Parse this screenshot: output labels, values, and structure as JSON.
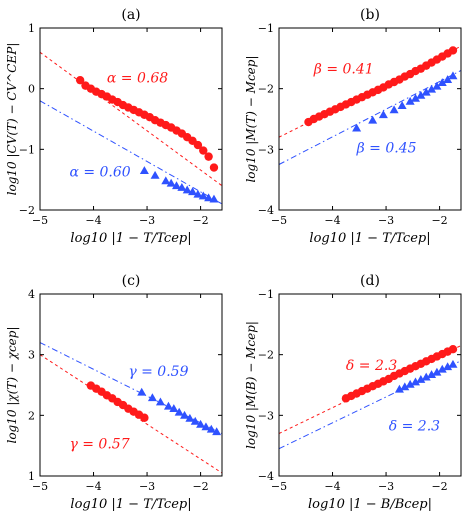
{
  "colors": {
    "red": "#ff1a1a",
    "blue": "#2f52ff",
    "axis": "#000000"
  },
  "chart_data": [
    {
      "type": "scatter",
      "panel_label": "(a)",
      "xlabel": "log10 |1 − T/Tcep|",
      "ylabel": "log10 |CV(T) − CV^CEP|",
      "xlim": [
        -5,
        -1.6
      ],
      "ylim": [
        -2,
        1
      ],
      "xticks": [
        -5,
        -4,
        -3,
        -2
      ],
      "yticks": [
        -2,
        -1,
        0,
        1
      ],
      "xtick_labels": [
        "−5",
        "−4",
        "−3",
        "−2"
      ],
      "ytick_labels": [
        "−2",
        "−1",
        "0",
        "1"
      ],
      "series": [
        {
          "color": "red",
          "marker": "circle",
          "x": [
            -4.25,
            -4.15,
            -4.05,
            -3.95,
            -3.85,
            -3.75,
            -3.65,
            -3.55,
            -3.45,
            -3.35,
            -3.25,
            -3.15,
            -3.05,
            -2.95,
            -2.85,
            -2.75,
            -2.65,
            -2.55,
            -2.45,
            -2.35,
            -2.25,
            -2.15,
            -2.05,
            -1.95,
            -1.85,
            -1.75
          ],
          "y": [
            0.14,
            0.05,
            0.0,
            -0.05,
            -0.09,
            -0.13,
            -0.18,
            -0.22,
            -0.27,
            -0.31,
            -0.35,
            -0.39,
            -0.43,
            -0.47,
            -0.52,
            -0.56,
            -0.6,
            -0.64,
            -0.69,
            -0.74,
            -0.8,
            -0.86,
            -0.93,
            -1.02,
            -1.12,
            -1.3
          ]
        },
        {
          "color": "blue",
          "marker": "triangle",
          "x": [
            -3.05,
            -2.85,
            -2.65,
            -2.55,
            -2.45,
            -2.35,
            -2.25,
            -2.15,
            -2.05,
            -1.95,
            -1.85,
            -1.75
          ],
          "y": [
            -1.35,
            -1.43,
            -1.52,
            -1.56,
            -1.6,
            -1.63,
            -1.67,
            -1.7,
            -1.74,
            -1.77,
            -1.8,
            -1.82
          ]
        }
      ],
      "fit_lines": [
        {
          "color": "red",
          "style": "dashed",
          "x": [
            -5,
            -1.6
          ],
          "y": [
            0.6,
            -1.6
          ]
        },
        {
          "color": "blue",
          "style": "dashdot",
          "x": [
            -5,
            -1.6
          ],
          "y": [
            -0.2,
            -1.9
          ]
        }
      ],
      "annotations": [
        {
          "text": "α = 0.68",
          "color": "red",
          "x": -3.75,
          "y": 0.1
        },
        {
          "text": "α = 0.60",
          "color": "blue",
          "x": -4.45,
          "y": -1.45
        }
      ]
    },
    {
      "type": "scatter",
      "panel_label": "(b)",
      "xlabel": "log10 |1 − T/Tcep|",
      "ylabel": "log10 |M(T) − Mcep|",
      "xlim": [
        -5,
        -1.6
      ],
      "ylim": [
        -4,
        -1
      ],
      "xticks": [
        -5,
        -4,
        -3,
        -2
      ],
      "yticks": [
        -4,
        -3,
        -2,
        -1
      ],
      "xtick_labels": [
        "−5",
        "−4",
        "−3",
        "−2"
      ],
      "ytick_labels": [
        "−4",
        "−3",
        "−2",
        "−1"
      ],
      "series": [
        {
          "color": "red",
          "marker": "circle",
          "x": [
            -4.45,
            -4.35,
            -4.25,
            -4.15,
            -4.05,
            -3.95,
            -3.85,
            -3.75,
            -3.65,
            -3.55,
            -3.45,
            -3.35,
            -3.25,
            -3.15,
            -3.05,
            -2.95,
            -2.85,
            -2.75,
            -2.65,
            -2.55,
            -2.45,
            -2.35,
            -2.25,
            -2.15,
            -2.05,
            -1.95,
            -1.85,
            -1.75
          ],
          "y": [
            -2.55,
            -2.5,
            -2.46,
            -2.42,
            -2.38,
            -2.34,
            -2.3,
            -2.26,
            -2.22,
            -2.18,
            -2.14,
            -2.1,
            -2.06,
            -2.02,
            -1.98,
            -1.93,
            -1.89,
            -1.85,
            -1.8,
            -1.76,
            -1.71,
            -1.67,
            -1.62,
            -1.57,
            -1.52,
            -1.47,
            -1.42,
            -1.37
          ]
        },
        {
          "color": "blue",
          "marker": "triangle",
          "x": [
            -3.55,
            -3.25,
            -3.05,
            -2.85,
            -2.7,
            -2.55,
            -2.45,
            -2.35,
            -2.25,
            -2.15,
            -2.05,
            -1.95,
            -1.85,
            -1.75
          ],
          "y": [
            -2.65,
            -2.52,
            -2.43,
            -2.35,
            -2.28,
            -2.21,
            -2.16,
            -2.11,
            -2.06,
            -2.01,
            -1.96,
            -1.9,
            -1.85,
            -1.79
          ]
        }
      ],
      "fit_lines": [
        {
          "color": "red",
          "style": "dashed",
          "x": [
            -5,
            -1.6
          ],
          "y": [
            -2.8,
            -1.3
          ]
        },
        {
          "color": "blue",
          "style": "dashdot",
          "x": [
            -5,
            -1.6
          ],
          "y": [
            -3.25,
            -1.7
          ]
        }
      ],
      "annotations": [
        {
          "text": "β = 0.41",
          "color": "red",
          "x": -4.35,
          "y": -1.75
        },
        {
          "text": "β = 0.45",
          "color": "blue",
          "x": -3.55,
          "y": -3.05
        }
      ]
    },
    {
      "type": "scatter",
      "panel_label": "(c)",
      "xlabel": "log10 |1 − T/Tcep|",
      "ylabel": "log10 |χ(T) − χcep|",
      "xlim": [
        -5,
        -1.6
      ],
      "ylim": [
        1,
        4
      ],
      "xticks": [
        -5,
        -4,
        -3,
        -2
      ],
      "yticks": [
        1,
        2,
        3,
        4
      ],
      "xtick_labels": [
        "−5",
        "−4",
        "−3",
        "−2"
      ],
      "ytick_labels": [
        "1",
        "2",
        "3",
        "4"
      ],
      "series": [
        {
          "color": "red",
          "marker": "circle",
          "x": [
            -4.05,
            -3.95,
            -3.85,
            -3.75,
            -3.65,
            -3.55,
            -3.45,
            -3.35,
            -3.25,
            -3.15,
            -3.05
          ],
          "y": [
            2.49,
            2.44,
            2.39,
            2.33,
            2.28,
            2.22,
            2.17,
            2.11,
            2.06,
            2.01,
            1.96
          ]
        },
        {
          "color": "blue",
          "marker": "triangle",
          "x": [
            -3.1,
            -2.9,
            -2.75,
            -2.6,
            -2.5,
            -2.4,
            -2.3,
            -2.2,
            -2.1,
            -2.0,
            -1.9,
            -1.8,
            -1.7
          ],
          "y": [
            2.38,
            2.29,
            2.22,
            2.15,
            2.11,
            2.05,
            2.0,
            1.95,
            1.9,
            1.85,
            1.81,
            1.77,
            1.73
          ]
        }
      ],
      "fit_lines": [
        {
          "color": "red",
          "style": "dashed",
          "x": [
            -5,
            -1.6
          ],
          "y": [
            3.0,
            1.05
          ]
        },
        {
          "color": "blue",
          "style": "dashdot",
          "x": [
            -5,
            -1.6
          ],
          "y": [
            3.2,
            1.7
          ]
        }
      ],
      "annotations": [
        {
          "text": "γ = 0.59",
          "color": "blue",
          "x": -3.35,
          "y": 2.65
        },
        {
          "text": "γ = 0.57",
          "color": "red",
          "x": -4.45,
          "y": 1.45
        }
      ]
    },
    {
      "type": "scatter",
      "panel_label": "(d)",
      "xlabel": "log10 |1 − B/Bcep|",
      "ylabel": "log10 |M(B) − Mcep|",
      "xlim": [
        -5,
        -1.6
      ],
      "ylim": [
        -4,
        -1
      ],
      "xticks": [
        -5,
        -4,
        -3,
        -2
      ],
      "yticks": [
        -4,
        -3,
        -2,
        -1
      ],
      "xtick_labels": [
        "−5",
        "−4",
        "−3",
        "−2"
      ],
      "ytick_labels": [
        "−4",
        "−3",
        "−2",
        "−1"
      ],
      "series": [
        {
          "color": "red",
          "marker": "circle",
          "x": [
            -3.75,
            -3.65,
            -3.55,
            -3.45,
            -3.35,
            -3.25,
            -3.15,
            -3.05,
            -2.95,
            -2.85,
            -2.75,
            -2.65,
            -2.55,
            -2.45,
            -2.35,
            -2.25,
            -2.15,
            -2.05,
            -1.95,
            -1.85,
            -1.75
          ],
          "y": [
            -2.72,
            -2.68,
            -2.64,
            -2.6,
            -2.56,
            -2.52,
            -2.48,
            -2.44,
            -2.4,
            -2.35,
            -2.31,
            -2.27,
            -2.23,
            -2.19,
            -2.15,
            -2.11,
            -2.07,
            -2.03,
            -1.99,
            -1.95,
            -1.91
          ]
        },
        {
          "color": "blue",
          "marker": "triangle",
          "x": [
            -2.75,
            -2.65,
            -2.55,
            -2.45,
            -2.35,
            -2.25,
            -2.15,
            -2.05,
            -1.95,
            -1.85,
            -1.75
          ],
          "y": [
            -2.57,
            -2.53,
            -2.49,
            -2.45,
            -2.41,
            -2.37,
            -2.33,
            -2.29,
            -2.24,
            -2.2,
            -2.16
          ]
        }
      ],
      "fit_lines": [
        {
          "color": "red",
          "style": "dashed",
          "x": [
            -5,
            -1.6
          ],
          "y": [
            -3.3,
            -1.85
          ]
        },
        {
          "color": "blue",
          "style": "dashdot",
          "x": [
            -5,
            -1.6
          ],
          "y": [
            -3.55,
            -2.1
          ]
        }
      ],
      "annotations": [
        {
          "text": "δ = 2.3",
          "color": "red",
          "x": -3.75,
          "y": -2.25
        },
        {
          "text": "δ = 2.3",
          "color": "blue",
          "x": -2.95,
          "y": -3.25
        }
      ]
    }
  ]
}
